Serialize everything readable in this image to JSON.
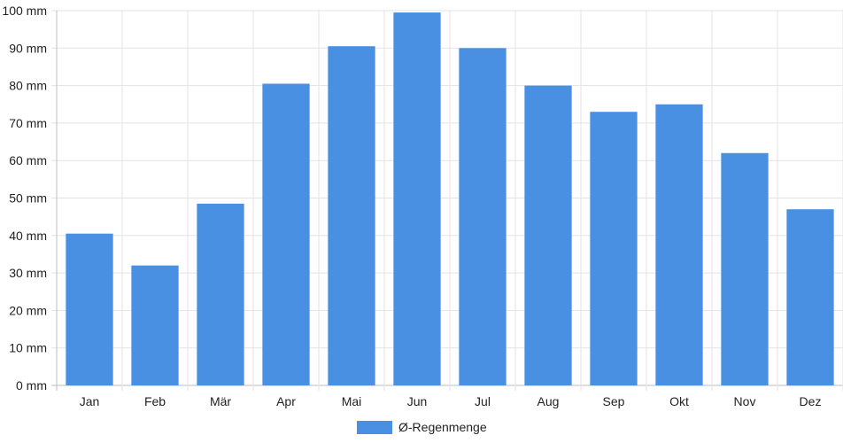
{
  "chart_data": {
    "type": "bar",
    "categories": [
      "Jan",
      "Feb",
      "Mär",
      "Apr",
      "Mai",
      "Jun",
      "Jul",
      "Aug",
      "Sep",
      "Okt",
      "Nov",
      "Dez"
    ],
    "series": [
      {
        "name": "Ø-Regenmenge",
        "values": [
          40.5,
          32,
          48.5,
          80.5,
          90.5,
          99.5,
          90,
          80,
          73,
          75,
          62,
          47
        ],
        "color": "#4a90e2"
      }
    ],
    "yticks": [
      0,
      10,
      20,
      30,
      40,
      50,
      60,
      70,
      80,
      90,
      100
    ],
    "ytick_labels": [
      "0 mm",
      "10 mm",
      "20 mm",
      "30 mm",
      "40 mm",
      "50 mm",
      "60 mm",
      "70 mm",
      "80 mm",
      "90 mm",
      "100 mm"
    ],
    "ylim": [
      0,
      100
    ],
    "grid": true,
    "legend": "bottom-center"
  }
}
